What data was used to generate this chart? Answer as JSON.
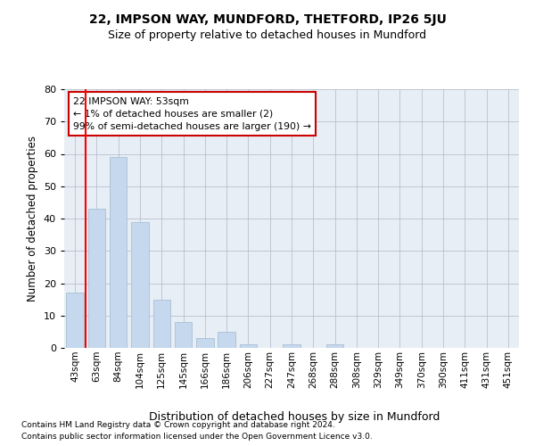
{
  "title": "22, IMPSON WAY, MUNDFORD, THETFORD, IP26 5JU",
  "subtitle": "Size of property relative to detached houses in Mundford",
  "xlabel": "Distribution of detached houses by size in Mundford",
  "ylabel": "Number of detached properties",
  "footer_line1": "Contains HM Land Registry data © Crown copyright and database right 2024.",
  "footer_line2": "Contains public sector information licensed under the Open Government Licence v3.0.",
  "categories": [
    "43sqm",
    "63sqm",
    "84sqm",
    "104sqm",
    "125sqm",
    "145sqm",
    "166sqm",
    "186sqm",
    "206sqm",
    "227sqm",
    "247sqm",
    "268sqm",
    "288sqm",
    "308sqm",
    "329sqm",
    "349sqm",
    "370sqm",
    "390sqm",
    "411sqm",
    "431sqm",
    "451sqm"
  ],
  "values": [
    17,
    43,
    59,
    39,
    15,
    8,
    3,
    5,
    1,
    0,
    1,
    0,
    1,
    0,
    0,
    0,
    0,
    0,
    0,
    0,
    0
  ],
  "bar_color": "#c5d8ed",
  "bar_edge_color": "#a0b8d0",
  "grid_color": "#b0b8c8",
  "bg_color": "#e8eef5",
  "annotation_text_line1": "22 IMPSON WAY: 53sqm",
  "annotation_text_line2": "← 1% of detached houses are smaller (2)",
  "annotation_text_line3": "99% of semi-detached houses are larger (190) →",
  "annotation_box_color": "#cc0000",
  "vline_x_index": 0,
  "ylim": [
    0,
    80
  ],
  "yticks": [
    0,
    10,
    20,
    30,
    40,
    50,
    60,
    70,
    80
  ]
}
